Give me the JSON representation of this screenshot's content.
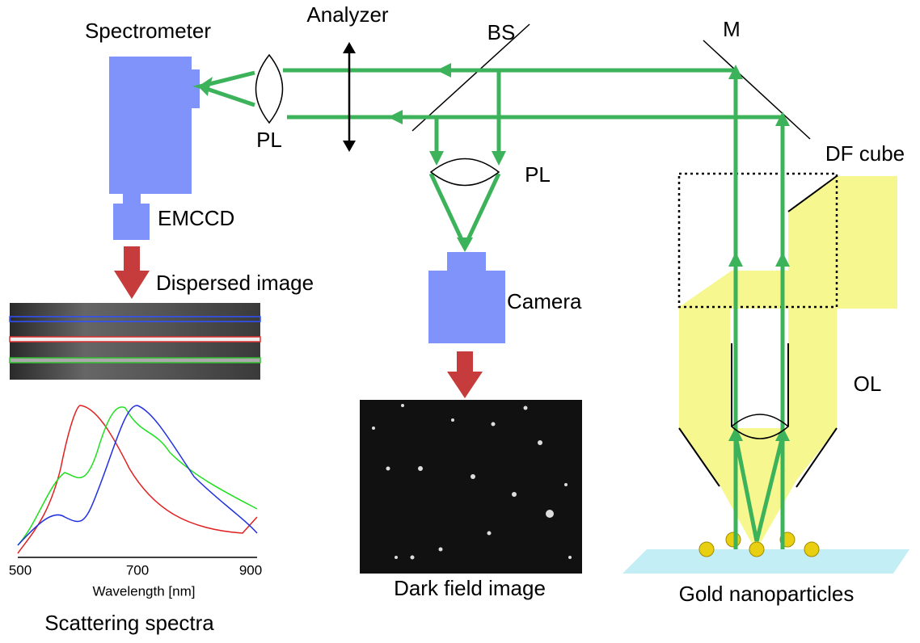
{
  "labels": {
    "spectrometer": "Spectrometer",
    "analyzer": "Analyzer",
    "bs": "BS",
    "mirror": "M",
    "pl_left": "PL",
    "pl_center": "PL",
    "df_cube": "DF cube",
    "emccd": "EMCCD",
    "dispersed_image": "Dispersed image",
    "camera": "Camera",
    "ol": "OL",
    "dark_field_image": "Dark field image",
    "gold_nanoparticles": "Gold nanoparticles",
    "scattering_spectra": "Scattering spectra"
  },
  "spectra_axis": {
    "label": "Wavelength [nm]",
    "ticks": [
      "500",
      "700",
      "900"
    ]
  }
}
